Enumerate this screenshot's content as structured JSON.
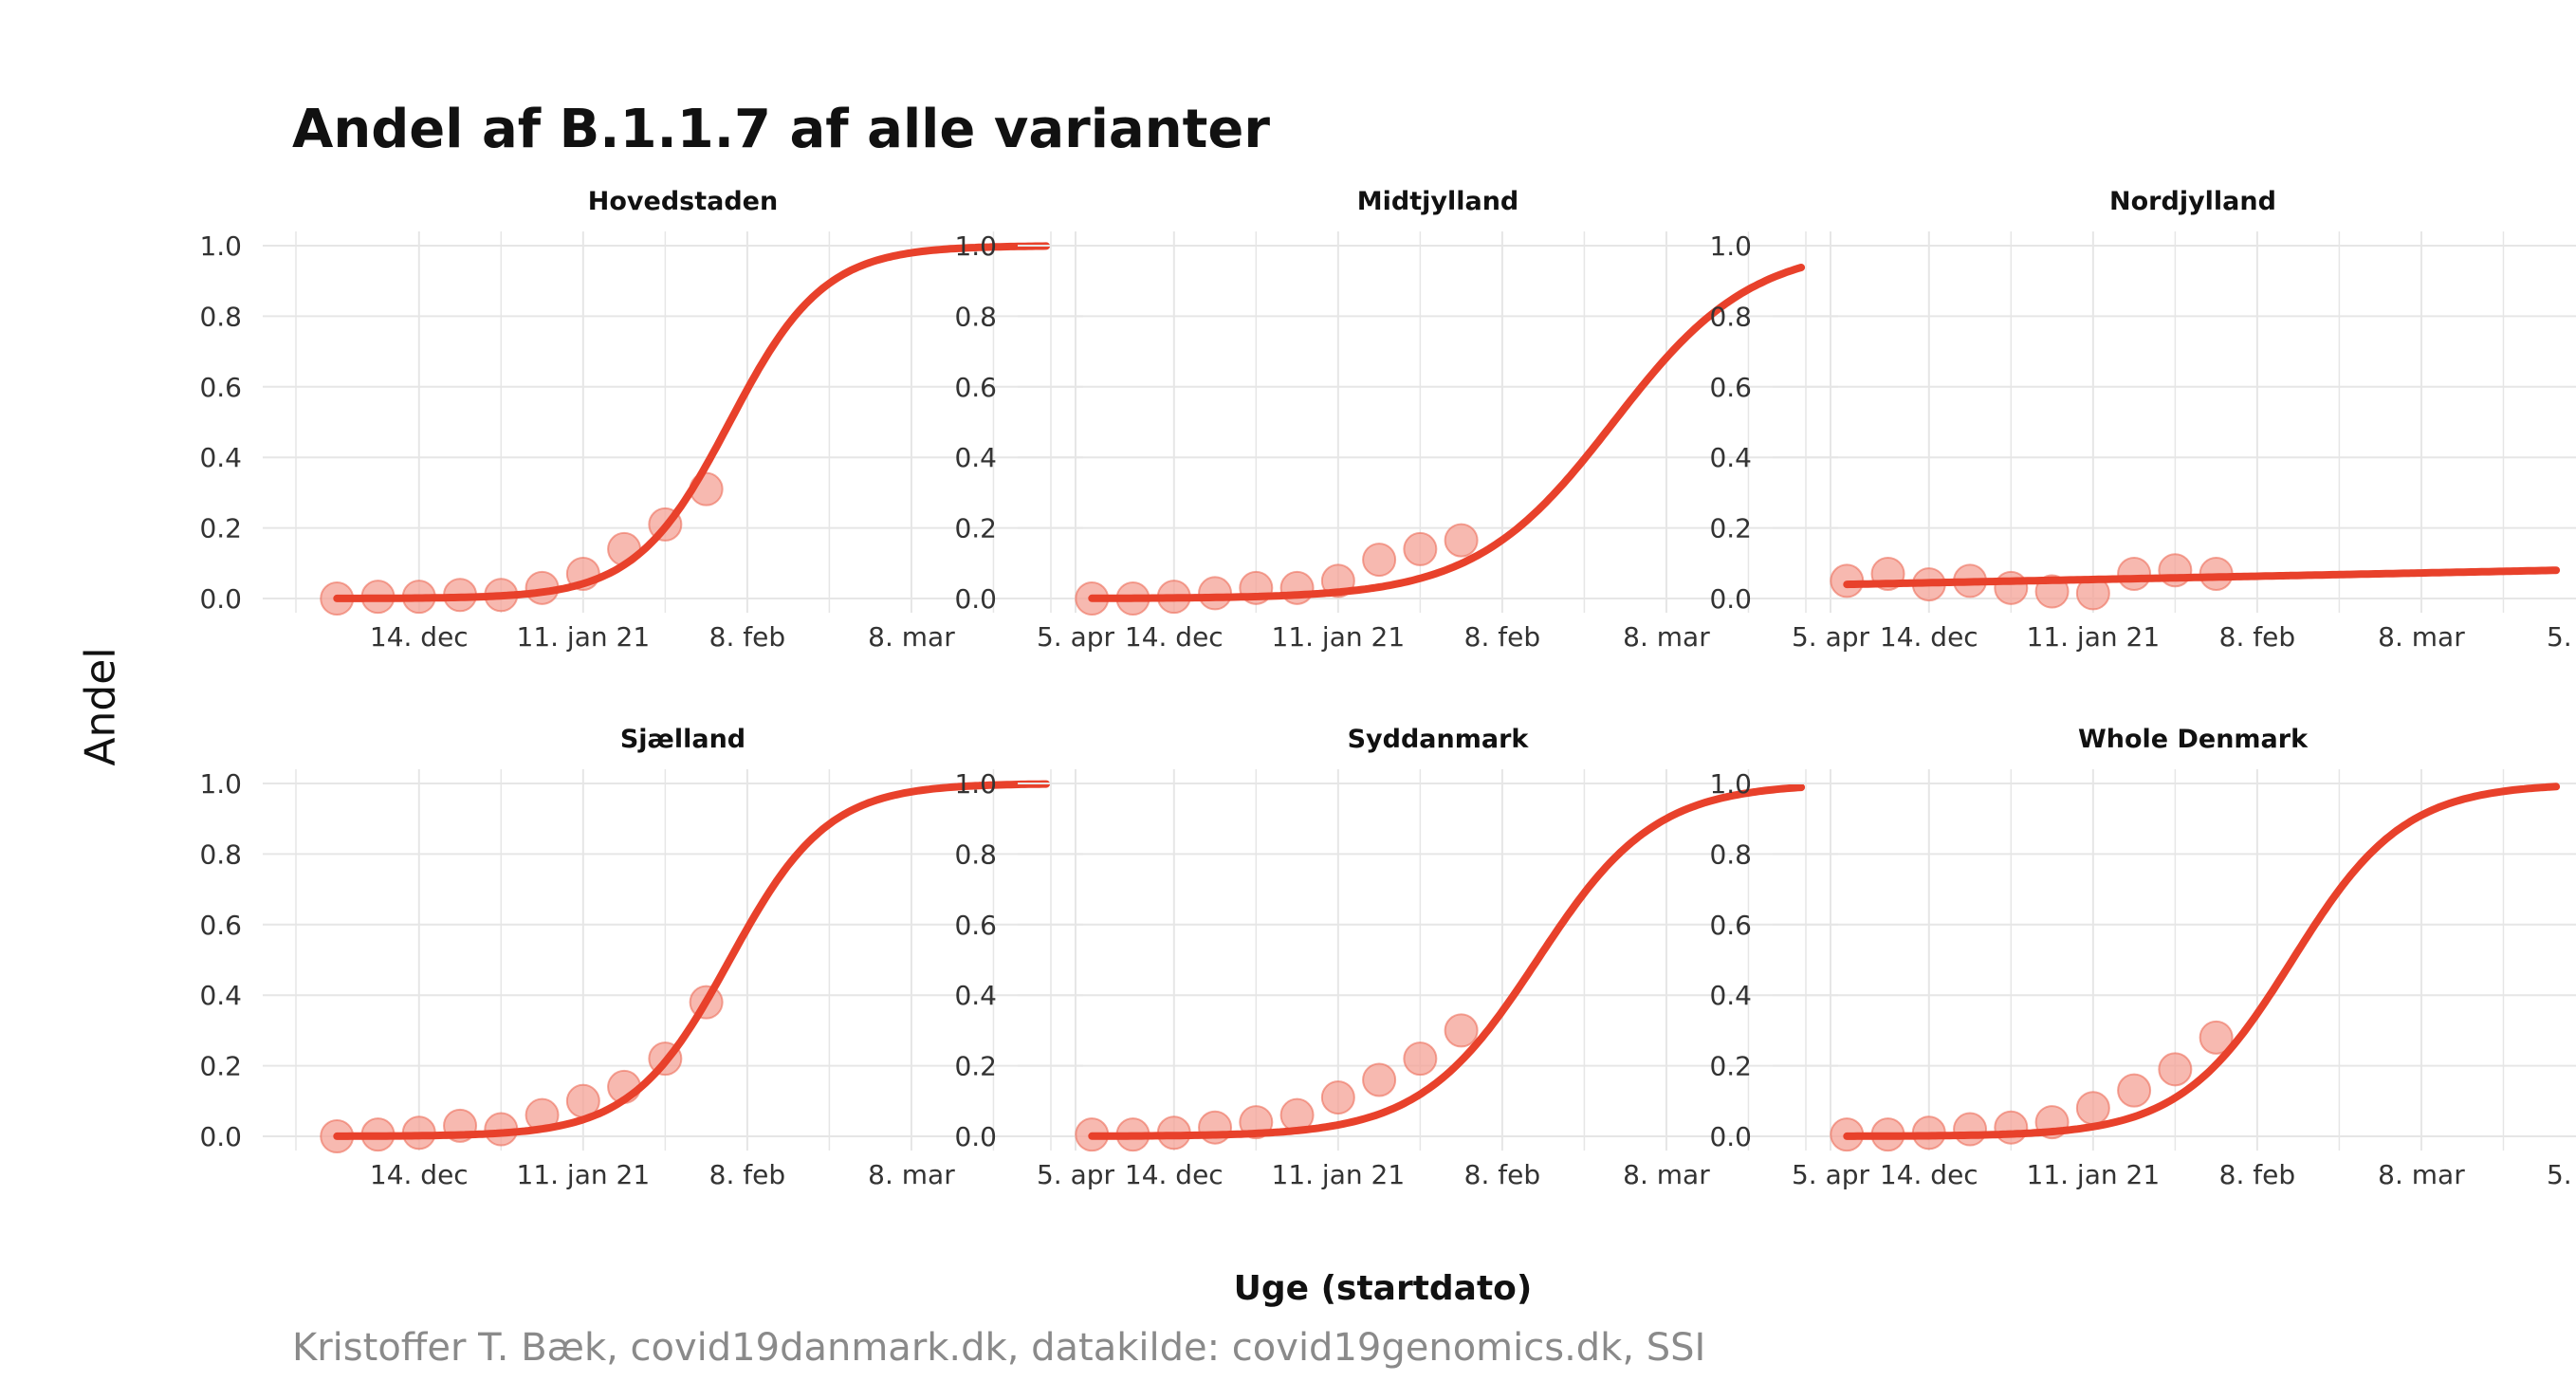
{
  "title": "Andel af B.1.1.7 af alle varianter",
  "ylabel": "Andel",
  "xlabel": "Uge (startdato)",
  "caption": "Kristoffer T. Bæk, covid19danmark.dk, datakilde: covid19genomics.dk, SSI",
  "colors": {
    "line": "#e8412b",
    "point_fill": "#f4a296",
    "point_stroke": "#ec6a57",
    "grid": "#e6e6e6"
  },
  "chart_data": {
    "type": "line",
    "facets": [
      "Hovedstaden",
      "Midtjylland",
      "Nordjylland",
      "Sjælland",
      "Syddanmark",
      "Whole Denmark"
    ],
    "x_tick_labels": [
      "14. dec",
      "11. jan 21",
      "8. feb",
      "8. mar",
      "5. apr"
    ],
    "x_tick_dates": [
      "2020-12-14",
      "2021-01-11",
      "2021-02-08",
      "2021-03-08",
      "2021-04-05"
    ],
    "xlim": [
      "2020-11-23",
      "2021-04-05"
    ],
    "ylim": [
      0,
      1
    ],
    "y_ticks": [
      "0.0",
      "0.2",
      "0.4",
      "0.6",
      "0.8",
      "1.0"
    ],
    "grid": true,
    "observed_dates": [
      "2020-11-30",
      "2020-12-07",
      "2020-12-14",
      "2020-12-21",
      "2020-12-28",
      "2021-01-04",
      "2021-01-11",
      "2021-01-18",
      "2021-01-25",
      "2021-02-01"
    ],
    "fit_range": [
      "2020-11-30",
      "2021-03-31"
    ],
    "panels": [
      {
        "name": "Hovedstaden",
        "observed": [
          0.0,
          0.005,
          0.005,
          0.01,
          0.01,
          0.03,
          0.07,
          0.14,
          0.21,
          0.31
        ],
        "fit": {
          "midpoint": "2021-02-05",
          "rate_per_day": 0.125,
          "base": 0
        }
      },
      {
        "name": "Midtjylland",
        "observed": [
          0.0,
          0.0,
          0.005,
          0.015,
          0.03,
          0.03,
          0.05,
          0.11,
          0.14,
          0.165
        ],
        "fit": {
          "midpoint": "2021-02-27",
          "rate_per_day": 0.085,
          "base": 0
        }
      },
      {
        "name": "Nordjylland",
        "observed": [
          0.05,
          0.07,
          0.04,
          0.05,
          0.03,
          0.02,
          0.015,
          0.07,
          0.08,
          0.07
        ],
        "fit": {
          "start_value": 0.04,
          "end_value": 0.08,
          "linear": true
        }
      },
      {
        "name": "Sjælland",
        "observed": [
          0.0,
          0.005,
          0.01,
          0.03,
          0.02,
          0.06,
          0.1,
          0.14,
          0.22,
          0.38
        ],
        "fit": {
          "midpoint": "2021-02-05",
          "rate_per_day": 0.12,
          "base": 0
        }
      },
      {
        "name": "Syddanmark",
        "observed": [
          0.005,
          0.005,
          0.01,
          0.025,
          0.04,
          0.06,
          0.11,
          0.16,
          0.22,
          0.3
        ],
        "fit": {
          "midpoint": "2021-02-14",
          "rate_per_day": 0.1,
          "base": 0
        }
      },
      {
        "name": "Whole Denmark",
        "observed": [
          0.005,
          0.005,
          0.01,
          0.02,
          0.025,
          0.04,
          0.08,
          0.13,
          0.19,
          0.28
        ],
        "fit": {
          "midpoint": "2021-02-14",
          "rate_per_day": 0.105,
          "base": 0
        }
      }
    ]
  }
}
